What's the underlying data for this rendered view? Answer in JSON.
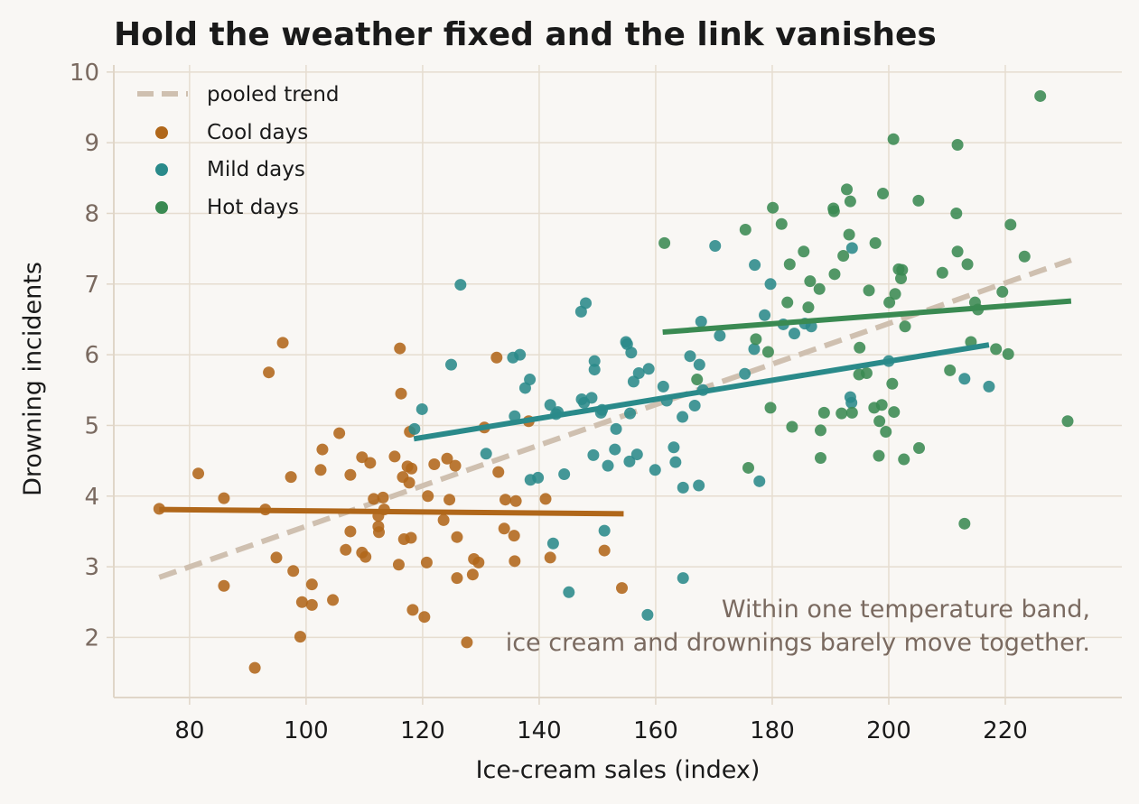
{
  "colors": {
    "background": "#f9f7f4",
    "grid": "#e6ddd0",
    "axis": "#e0d6c8",
    "cool": "#b0671a",
    "mild": "#2a8a8a",
    "hot": "#3a8a52",
    "pooled": "#cfc0b0",
    "annotation": "#7a6a60"
  },
  "chart_data": {
    "type": "scatter",
    "title": "Hold the weather fixed and the link vanishes",
    "xlabel": "Ice-cream sales (index)",
    "ylabel": "Drowning incidents",
    "xlim": [
      67,
      240
    ],
    "ylim": [
      1.15,
      10.1
    ],
    "xticks": [
      "80",
      "100",
      "120",
      "140",
      "160",
      "180",
      "200",
      "220"
    ],
    "yticks": [
      "2",
      "3",
      "4",
      "5",
      "6",
      "7",
      "8",
      "9",
      "10"
    ],
    "grid": true,
    "legend_position": "top-left",
    "annotation": [
      "Within one temperature band,",
      "ice cream and drownings barely move together."
    ],
    "pooled_trend": {
      "name": "pooled trend",
      "x": [
        74.8,
        231.3
      ],
      "y": [
        2.85,
        7.34
      ]
    },
    "series": [
      {
        "name": "Cool days",
        "color_key": "cool",
        "fit": {
          "x": [
            74.8,
            154.5
          ],
          "y": [
            3.81,
            3.75
          ]
        },
        "points": [
          [
            74.8,
            3.82
          ],
          [
            81.5,
            4.32
          ],
          [
            85.9,
            3.97
          ],
          [
            85.9,
            2.73
          ],
          [
            91.2,
            1.57
          ],
          [
            93.0,
            3.81
          ],
          [
            93.6,
            5.75
          ],
          [
            94.9,
            3.13
          ],
          [
            96.0,
            6.17
          ],
          [
            97.4,
            4.27
          ],
          [
            97.8,
            2.94
          ],
          [
            99.0,
            2.01
          ],
          [
            99.3,
            2.5
          ],
          [
            101.0,
            2.75
          ],
          [
            101.0,
            2.46
          ],
          [
            102.5,
            4.37
          ],
          [
            102.8,
            4.66
          ],
          [
            104.6,
            2.53
          ],
          [
            105.7,
            4.89
          ],
          [
            106.8,
            3.24
          ],
          [
            107.6,
            4.3
          ],
          [
            107.6,
            3.5
          ],
          [
            109.6,
            3.2
          ],
          [
            109.6,
            4.55
          ],
          [
            110.2,
            3.14
          ],
          [
            111.0,
            4.47
          ],
          [
            111.6,
            3.96
          ],
          [
            112.4,
            3.72
          ],
          [
            112.4,
            3.57
          ],
          [
            112.5,
            3.49
          ],
          [
            113.2,
            3.98
          ],
          [
            113.4,
            3.81
          ],
          [
            115.2,
            4.56
          ],
          [
            115.9,
            3.03
          ],
          [
            116.1,
            6.09
          ],
          [
            116.3,
            5.45
          ],
          [
            116.6,
            4.27
          ],
          [
            116.8,
            3.39
          ],
          [
            117.4,
            4.42
          ],
          [
            117.7,
            4.19
          ],
          [
            117.8,
            4.91
          ],
          [
            118.0,
            3.41
          ],
          [
            118.1,
            4.39
          ],
          [
            118.3,
            2.39
          ],
          [
            120.3,
            2.29
          ],
          [
            120.7,
            3.06
          ],
          [
            120.9,
            4.0
          ],
          [
            122.0,
            4.45
          ],
          [
            123.6,
            3.66
          ],
          [
            124.2,
            4.53
          ],
          [
            124.6,
            3.95
          ],
          [
            125.6,
            4.43
          ],
          [
            125.9,
            3.42
          ],
          [
            125.9,
            2.84
          ],
          [
            127.6,
            1.93
          ],
          [
            128.6,
            2.89
          ],
          [
            128.8,
            3.11
          ],
          [
            129.6,
            3.06
          ],
          [
            130.6,
            4.97
          ],
          [
            132.7,
            5.96
          ],
          [
            133.0,
            4.34
          ],
          [
            134.0,
            3.54
          ],
          [
            134.2,
            3.95
          ],
          [
            135.7,
            3.44
          ],
          [
            135.8,
            3.08
          ],
          [
            136.0,
            3.93
          ],
          [
            138.2,
            5.06
          ],
          [
            141.1,
            3.96
          ],
          [
            141.9,
            3.13
          ],
          [
            151.2,
            3.23
          ],
          [
            154.2,
            2.7
          ]
        ]
      },
      {
        "name": "Mild days",
        "color_key": "mild",
        "fit": {
          "x": [
            118.5,
            217.2
          ],
          "y": [
            4.81,
            6.14
          ]
        },
        "points": [
          [
            118.6,
            4.95
          ],
          [
            119.9,
            5.23
          ],
          [
            124.9,
            5.86
          ],
          [
            126.5,
            6.99
          ],
          [
            130.9,
            4.6
          ],
          [
            135.5,
            5.96
          ],
          [
            135.8,
            5.13
          ],
          [
            136.7,
            6.0
          ],
          [
            137.6,
            5.53
          ],
          [
            138.4,
            5.65
          ],
          [
            138.5,
            4.23
          ],
          [
            139.8,
            4.26
          ],
          [
            141.9,
            5.29
          ],
          [
            142.4,
            3.33
          ],
          [
            142.9,
            5.16
          ],
          [
            143.2,
            5.19
          ],
          [
            144.3,
            4.31
          ],
          [
            145.1,
            2.64
          ],
          [
            147.2,
            6.61
          ],
          [
            147.3,
            5.37
          ],
          [
            147.7,
            5.32
          ],
          [
            148.0,
            6.73
          ],
          [
            149.0,
            5.39
          ],
          [
            149.3,
            4.58
          ],
          [
            149.5,
            5.91
          ],
          [
            149.5,
            5.79
          ],
          [
            150.6,
            5.18
          ],
          [
            150.8,
            5.22
          ],
          [
            151.2,
            3.51
          ],
          [
            151.8,
            4.43
          ],
          [
            153.0,
            4.66
          ],
          [
            153.2,
            4.95
          ],
          [
            154.9,
            6.18
          ],
          [
            155.1,
            6.15
          ],
          [
            155.5,
            4.49
          ],
          [
            155.6,
            5.17
          ],
          [
            155.8,
            6.03
          ],
          [
            156.2,
            5.62
          ],
          [
            156.8,
            4.59
          ],
          [
            157.1,
            5.74
          ],
          [
            158.8,
            5.8
          ],
          [
            159.9,
            4.37
          ],
          [
            161.3,
            5.55
          ],
          [
            161.9,
            5.35
          ],
          [
            163.1,
            4.69
          ],
          [
            163.4,
            4.48
          ],
          [
            164.6,
            5.12
          ],
          [
            164.7,
            4.12
          ],
          [
            164.7,
            2.84
          ],
          [
            165.9,
            5.98
          ],
          [
            166.7,
            5.28
          ],
          [
            167.4,
            4.15
          ],
          [
            167.5,
            5.86
          ],
          [
            167.8,
            6.47
          ],
          [
            168.1,
            5.5
          ],
          [
            170.2,
            7.54
          ],
          [
            171.0,
            6.27
          ],
          [
            175.3,
            5.73
          ],
          [
            176.9,
            6.08
          ],
          [
            177.0,
            7.27
          ],
          [
            177.8,
            4.21
          ],
          [
            178.7,
            6.56
          ],
          [
            179.7,
            7.0
          ],
          [
            181.9,
            6.43
          ],
          [
            183.8,
            6.3
          ],
          [
            185.6,
            6.44
          ],
          [
            186.7,
            6.4
          ],
          [
            193.4,
            5.4
          ],
          [
            193.6,
            5.32
          ],
          [
            193.7,
            7.51
          ],
          [
            200.0,
            5.91
          ],
          [
            213.0,
            5.66
          ],
          [
            217.2,
            5.55
          ],
          [
            158.6,
            2.32
          ]
        ]
      },
      {
        "name": "Hot days",
        "color_key": "hot",
        "fit": {
          "x": [
            161.2,
            231.3
          ],
          "y": [
            6.32,
            6.76
          ]
        },
        "points": [
          [
            161.5,
            7.58
          ],
          [
            167.1,
            5.65
          ],
          [
            175.4,
            7.77
          ],
          [
            175.9,
            4.4
          ],
          [
            177.2,
            6.22
          ],
          [
            179.3,
            6.04
          ],
          [
            179.7,
            5.25
          ],
          [
            180.1,
            8.08
          ],
          [
            181.6,
            7.85
          ],
          [
            182.6,
            6.74
          ],
          [
            183.0,
            7.28
          ],
          [
            183.4,
            4.98
          ],
          [
            185.4,
            7.46
          ],
          [
            186.2,
            6.67
          ],
          [
            186.5,
            7.04
          ],
          [
            188.1,
            6.93
          ],
          [
            188.3,
            4.93
          ],
          [
            188.3,
            4.54
          ],
          [
            188.9,
            5.18
          ],
          [
            190.5,
            8.07
          ],
          [
            190.6,
            8.03
          ],
          [
            190.7,
            7.14
          ],
          [
            191.9,
            5.17
          ],
          [
            192.2,
            7.4
          ],
          [
            192.8,
            8.34
          ],
          [
            193.2,
            7.7
          ],
          [
            193.4,
            8.17
          ],
          [
            193.7,
            5.18
          ],
          [
            194.9,
            5.72
          ],
          [
            195.0,
            6.1
          ],
          [
            196.2,
            5.74
          ],
          [
            196.6,
            6.91
          ],
          [
            197.5,
            5.25
          ],
          [
            197.7,
            7.58
          ],
          [
            198.3,
            4.57
          ],
          [
            198.4,
            5.06
          ],
          [
            198.8,
            5.29
          ],
          [
            199.0,
            8.28
          ],
          [
            199.5,
            4.91
          ],
          [
            200.1,
            6.74
          ],
          [
            200.6,
            5.59
          ],
          [
            200.8,
            9.05
          ],
          [
            200.9,
            5.19
          ],
          [
            201.1,
            6.86
          ],
          [
            201.7,
            7.21
          ],
          [
            202.1,
            7.08
          ],
          [
            202.3,
            7.2
          ],
          [
            202.6,
            4.52
          ],
          [
            202.8,
            6.4
          ],
          [
            205.1,
            8.18
          ],
          [
            205.2,
            4.68
          ],
          [
            209.2,
            7.16
          ],
          [
            210.5,
            5.78
          ],
          [
            211.6,
            8.0
          ],
          [
            211.8,
            8.97
          ],
          [
            211.8,
            7.46
          ],
          [
            213.0,
            3.61
          ],
          [
            213.5,
            7.28
          ],
          [
            214.1,
            6.18
          ],
          [
            214.8,
            6.74
          ],
          [
            215.3,
            6.64
          ],
          [
            218.4,
            6.08
          ],
          [
            219.5,
            6.89
          ],
          [
            220.5,
            6.01
          ],
          [
            220.9,
            7.84
          ],
          [
            223.3,
            7.39
          ],
          [
            226.0,
            9.66
          ],
          [
            230.7,
            5.06
          ]
        ]
      }
    ]
  }
}
